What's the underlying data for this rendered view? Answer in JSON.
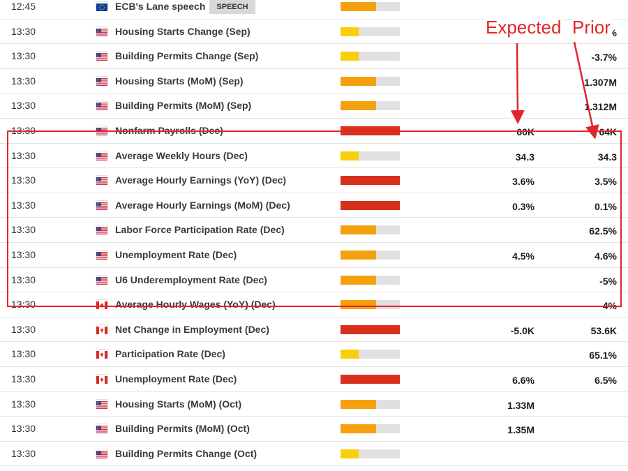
{
  "annotations": {
    "expected_label": "Expected",
    "prior_label": "Prior"
  },
  "colors": {
    "high_impact": "#d9301e",
    "medium_impact": "#f5a00f",
    "low_impact": "#f9cf0c",
    "impact_track": "#e0e0e0",
    "highlight": "#e0262a"
  },
  "events": [
    {
      "time": "12:45",
      "flag": "eu-flag-icon",
      "name": "ECB's Lane speech",
      "tag": "SPEECH",
      "impact": "medium",
      "expected": "",
      "prior": ""
    },
    {
      "time": "13:30",
      "flag": "us-flag-icon",
      "name": "Housing Starts Change (Sep)",
      "tag": "",
      "impact": "low",
      "expected": "",
      "prior": "-8.5%"
    },
    {
      "time": "13:30",
      "flag": "us-flag-icon",
      "name": "Building Permits Change (Sep)",
      "tag": "",
      "impact": "low",
      "expected": "",
      "prior": "-3.7%"
    },
    {
      "time": "13:30",
      "flag": "us-flag-icon",
      "name": "Housing Starts (MoM) (Sep)",
      "tag": "",
      "impact": "medium",
      "expected": "",
      "prior": "1.307M"
    },
    {
      "time": "13:30",
      "flag": "us-flag-icon",
      "name": "Building Permits (MoM) (Sep)",
      "tag": "",
      "impact": "medium",
      "expected": "",
      "prior": "1.312M"
    },
    {
      "time": "13:30",
      "flag": "us-flag-icon",
      "name": "Nonfarm Payrolls (Dec)",
      "tag": "",
      "impact": "high",
      "expected": "60K",
      "prior": "64K"
    },
    {
      "time": "13:30",
      "flag": "us-flag-icon",
      "name": "Average Weekly Hours (Dec)",
      "tag": "",
      "impact": "low",
      "expected": "34.3",
      "prior": "34.3"
    },
    {
      "time": "13:30",
      "flag": "us-flag-icon",
      "name": "Average Hourly Earnings (YoY) (Dec)",
      "tag": "",
      "impact": "high",
      "expected": "3.6%",
      "prior": "3.5%"
    },
    {
      "time": "13:30",
      "flag": "us-flag-icon",
      "name": "Average Hourly Earnings (MoM) (Dec)",
      "tag": "",
      "impact": "high",
      "expected": "0.3%",
      "prior": "0.1%"
    },
    {
      "time": "13:30",
      "flag": "us-flag-icon",
      "name": "Labor Force Participation Rate (Dec)",
      "tag": "",
      "impact": "medium",
      "expected": "",
      "prior": "62.5%"
    },
    {
      "time": "13:30",
      "flag": "us-flag-icon",
      "name": "Unemployment Rate (Dec)",
      "tag": "",
      "impact": "medium",
      "expected": "4.5%",
      "prior": "4.6%"
    },
    {
      "time": "13:30",
      "flag": "us-flag-icon",
      "name": "U6 Underemployment Rate (Dec)",
      "tag": "",
      "impact": "medium",
      "expected": "",
      "prior": "-5%"
    },
    {
      "time": "13:30",
      "flag": "ca-flag-icon",
      "name": "Average Hourly Wages (YoY) (Dec)",
      "tag": "",
      "impact": "medium",
      "expected": "",
      "prior": "4%"
    },
    {
      "time": "13:30",
      "flag": "ca-flag-icon",
      "name": "Net Change in Employment (Dec)",
      "tag": "",
      "impact": "high",
      "expected": "-5.0K",
      "prior": "53.6K"
    },
    {
      "time": "13:30",
      "flag": "ca-flag-icon",
      "name": "Participation Rate (Dec)",
      "tag": "",
      "impact": "low",
      "expected": "",
      "prior": "65.1%"
    },
    {
      "time": "13:30",
      "flag": "ca-flag-icon",
      "name": "Unemployment Rate (Dec)",
      "tag": "",
      "impact": "high",
      "expected": "6.6%",
      "prior": "6.5%"
    },
    {
      "time": "13:30",
      "flag": "us-flag-icon",
      "name": "Housing Starts (MoM) (Oct)",
      "tag": "",
      "impact": "medium",
      "expected": "1.33M",
      "prior": ""
    },
    {
      "time": "13:30",
      "flag": "us-flag-icon",
      "name": "Building Permits (MoM) (Oct)",
      "tag": "",
      "impact": "medium",
      "expected": "1.35M",
      "prior": ""
    },
    {
      "time": "13:30",
      "flag": "us-flag-icon",
      "name": "Building Permits Change (Oct)",
      "tag": "",
      "impact": "low",
      "expected": "",
      "prior": ""
    }
  ]
}
